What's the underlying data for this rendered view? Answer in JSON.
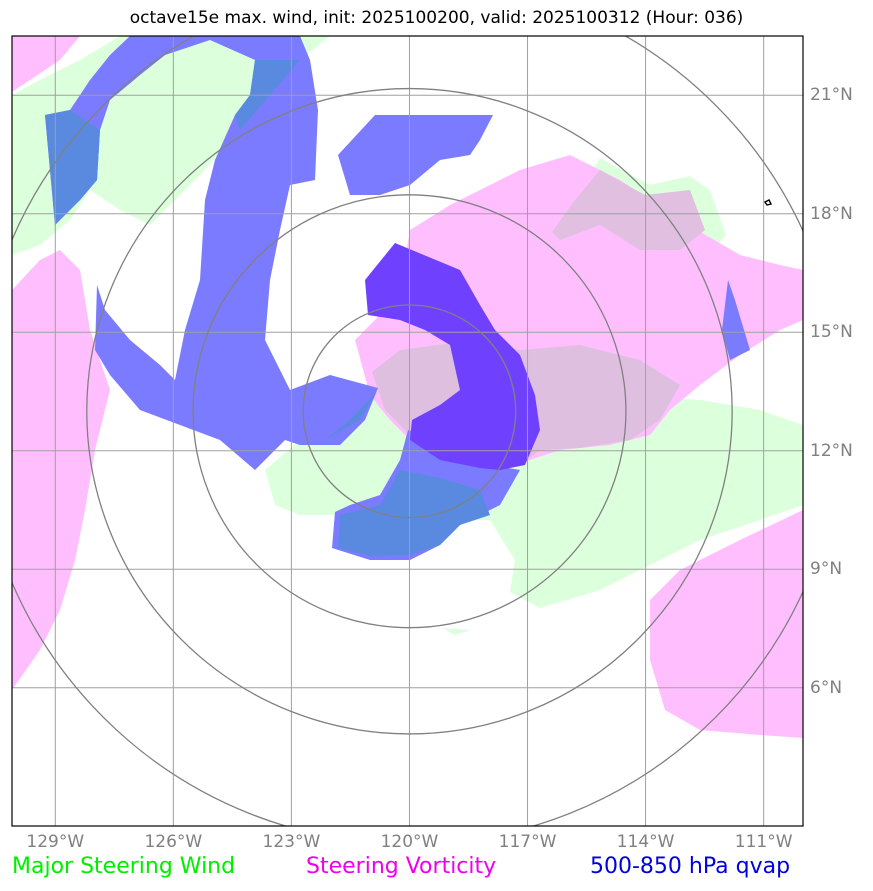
{
  "title": "octave15e max. wind, init: 2025100200, valid: 2025100312 (Hour: 036)",
  "map": {
    "lon_range": [
      -130.1,
      -110.0
    ],
    "lat_range": [
      2.5,
      22.5
    ],
    "lon_ticks": [
      {
        "value": -129,
        "label": "129°W"
      },
      {
        "value": -126,
        "label": "126°W"
      },
      {
        "value": -123,
        "label": "123°W"
      },
      {
        "value": -120,
        "label": "120°W"
      },
      {
        "value": -117,
        "label": "117°W"
      },
      {
        "value": -114,
        "label": "114°W"
      },
      {
        "value": -111,
        "label": "111°W"
      }
    ],
    "lat_ticks": [
      {
        "value": 21,
        "label": "21°N"
      },
      {
        "value": 18,
        "label": "18°N"
      },
      {
        "value": 15,
        "label": "15°N"
      },
      {
        "value": 12,
        "label": "12°N"
      },
      {
        "value": 9,
        "label": "9°N"
      },
      {
        "value": 6,
        "label": "6°N"
      }
    ],
    "center": {
      "lon": -120.0,
      "lat": 13.0
    },
    "range_rings_deg": [
      2.7,
      5.5,
      8.2,
      11.0
    ],
    "layers": [
      {
        "name": "Major Steering Wind",
        "color": "#00ff00"
      },
      {
        "name": "Steering Vorticity",
        "color": "#ff00ff"
      },
      {
        "name": "500-850 hPa qvap",
        "color": "#0000cc"
      }
    ]
  },
  "legend": {
    "major_steering_wind": "Major Steering Wind",
    "steering_vorticity": "Steering Vorticity",
    "qvap": "500-850 hPa qvap"
  },
  "colors": {
    "wind_fill": "#dcffdc",
    "vorticity_fill": "#ffbfff",
    "qvap_fill": "#7b7bff",
    "qvap_dark": "#6a3dff",
    "grid": "#a0a0a0",
    "rings": "#808080",
    "legend_wind": "#00ee00",
    "legend_vorticity": "#ee00ee",
    "legend_qvap": "#0000dd"
  }
}
